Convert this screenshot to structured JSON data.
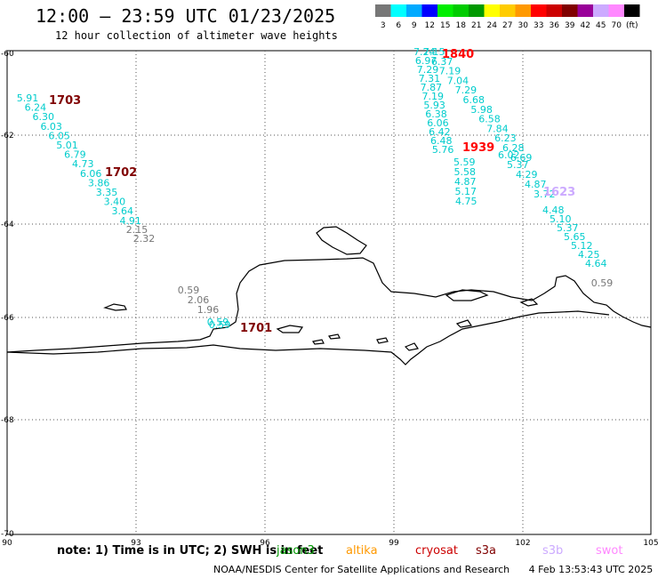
{
  "header": {
    "title": "12:00 – 23:59 UTC 01/23/2025",
    "subtitle": "12 hour collection of altimeter wave heights"
  },
  "color_scale": {
    "colors": [
      "#777777",
      "#00ffff",
      "#00aaff",
      "#0000ff",
      "#00ee00",
      "#00cc00",
      "#009900",
      "#ffff00",
      "#ffcc00",
      "#ff9900",
      "#ff0000",
      "#cc0000",
      "#800000",
      "#990099",
      "#ccaaff",
      "#ff88ff",
      "#000000"
    ],
    "labels": [
      "3",
      "6",
      "9",
      "12",
      "15",
      "18",
      "21",
      "24",
      "27",
      "30",
      "33",
      "36",
      "39",
      "42",
      "45",
      "70",
      "(ft)"
    ]
  },
  "axes": {
    "lon_ticks": [
      "90",
      "93",
      "96",
      "99",
      "102",
      "105"
    ],
    "lat_ticks": [
      "-60",
      "-62",
      "-64",
      "-66",
      "-68",
      "-70"
    ]
  },
  "track_ids": [
    {
      "id": "1703",
      "color": "#800000"
    },
    {
      "id": "1702",
      "color": "#800000"
    },
    {
      "id": "1701",
      "color": "#800000"
    },
    {
      "id": "1840",
      "color": "#ff0000"
    },
    {
      "id": "1939",
      "color": "#ff0000"
    },
    {
      "id": "1623",
      "color": "#ccaaff"
    }
  ],
  "tracks": [
    {
      "color": "#00cccc",
      "values": [
        "5.91",
        "6.24",
        "6.30",
        "6.03",
        "6.05",
        "5.01",
        "6.79",
        "4.73",
        "6.06",
        "3.86",
        "3.35",
        "3.40",
        "3.64",
        "4.91"
      ]
    },
    {
      "color": "#777777",
      "values": [
        "2.15",
        "2.32"
      ]
    },
    {
      "color": "#777777",
      "values": [
        "0.59",
        "2.06",
        "1.96"
      ]
    },
    {
      "color": "#00cccc",
      "values": [
        "0.59",
        "0.59"
      ]
    },
    {
      "color": "#00cccc",
      "values": [
        "7.24",
        "7.15",
        "6.97",
        "6.37",
        "7.29",
        "7.19",
        "7.31",
        "7.04",
        "7.87",
        "7.29",
        "7.19",
        "6.68",
        "5.93",
        "5.98",
        "6.38",
        "6.58",
        "6.06",
        "7.84",
        "6.42",
        "6.23",
        "6.48",
        "6.28",
        "5.76",
        "6.69",
        "5.59",
        "6.02",
        "5.58",
        "5.37",
        "4.87",
        "4.29",
        "5.17",
        "4.87",
        "4.75",
        "3.72",
        "4.48",
        "5.10",
        "5.37",
        "5.65",
        "5.12",
        "4.25",
        "4.64"
      ]
    },
    {
      "color": "#777777",
      "values": [
        "0.59"
      ]
    }
  ],
  "note": "note: 1) Time is in UTC; 2) SWH is in feet",
  "satellites": [
    {
      "name": "jason3",
      "color": "#009900"
    },
    {
      "name": "altika",
      "color": "#ff9900"
    },
    {
      "name": "cryosat",
      "color": "#cc0000"
    },
    {
      "name": "s3a",
      "color": "#800000"
    },
    {
      "name": "s3b",
      "color": "#ccaaff"
    },
    {
      "name": "swot",
      "color": "#ff88ff"
    }
  ],
  "credit": "NOAA/NESDIS Center for Satellite Applications and Research",
  "timestamp": "4 Feb 13:53:43 UTC 2025"
}
